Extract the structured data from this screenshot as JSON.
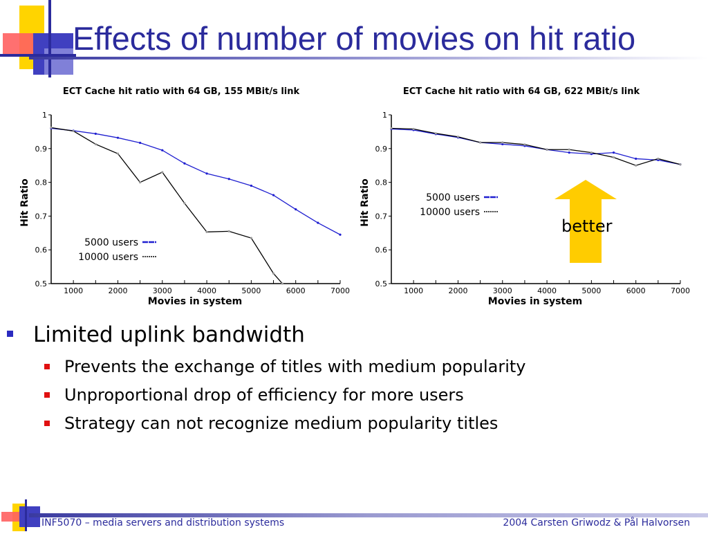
{
  "slide": {
    "title": "Effects of number of movies on hit ratio",
    "better_label": "better",
    "bullets": [
      {
        "text": "Limited uplink bandwidth",
        "sub": [
          "Prevents the exchange of titles with medium popularity",
          "Unproportional drop of efficiency for more users",
          "Strategy can not recognize medium popularity titles"
        ]
      }
    ],
    "footer": {
      "left": "INF5070 – media servers and distribution systems",
      "right": "2004  Carsten Griwodz & Pål Halvorsen"
    }
  },
  "colors": {
    "title": "#2b2b9c",
    "blue_series": "#1f1fd0",
    "black_series": "#000000",
    "arrow": "#ffcc00",
    "bullet_l1": "#2b2bc0",
    "bullet_l2": "#e01010"
  },
  "chart_data": [
    {
      "type": "line",
      "title": "ECT Cache hit ratio with 64 GB, 155 MBit/s link",
      "xlabel": "Movies in system",
      "ylabel": "Hit Ratio",
      "xlim": [
        500,
        7000
      ],
      "ylim": [
        0.5,
        1
      ],
      "x_ticks": [
        1000,
        2000,
        3000,
        4000,
        5000,
        6000,
        7000
      ],
      "y_ticks": [
        0.5,
        0.6,
        0.7,
        0.8,
        0.9,
        1
      ],
      "y_tick_labels": [
        "0.5",
        "0.6",
        "0.7",
        "0.8",
        "0.9",
        "1"
      ],
      "legend_position": "bottom-left",
      "series": [
        {
          "name": "5000 users",
          "color": "#1f1fd0",
          "x": [
            500,
            1000,
            1500,
            2000,
            2500,
            3000,
            3500,
            4000,
            4500,
            5000,
            5500,
            6000,
            6500,
            7000
          ],
          "values": [
            0.96,
            0.953,
            0.944,
            0.932,
            0.917,
            0.895,
            0.856,
            0.826,
            0.81,
            0.79,
            0.762,
            0.72,
            0.68,
            0.645
          ]
        },
        {
          "name": "10000 users",
          "color": "#000000",
          "x": [
            500,
            1000,
            1500,
            2000,
            2500,
            3000,
            3500,
            4000,
            4500,
            5000,
            5500,
            5700
          ],
          "values": [
            0.962,
            0.952,
            0.913,
            0.885,
            0.8,
            0.83,
            0.738,
            0.653,
            0.655,
            0.635,
            0.53,
            0.5
          ]
        }
      ]
    },
    {
      "type": "line",
      "title": "ECT Cache hit ratio with 64 GB, 622 MBit/s link",
      "xlabel": "Movies in system",
      "ylabel": "Hit Ratio",
      "xlim": [
        500,
        7000
      ],
      "ylim": [
        0.5,
        1
      ],
      "x_ticks": [
        1000,
        2000,
        3000,
        4000,
        5000,
        6000,
        7000
      ],
      "y_ticks": [
        0.5,
        0.6,
        0.7,
        0.8,
        0.9,
        1
      ],
      "y_tick_labels": [
        "0.5",
        "0.6",
        "0.7",
        "0.8",
        "0.9",
        "1"
      ],
      "legend_position": "middle-left",
      "series": [
        {
          "name": "5000 users",
          "color": "#1f1fd0",
          "x": [
            500,
            1000,
            1500,
            2000,
            2500,
            3000,
            3500,
            4000,
            4500,
            5000,
            5500,
            6000,
            6500,
            7000
          ],
          "values": [
            0.958,
            0.955,
            0.943,
            0.933,
            0.918,
            0.913,
            0.908,
            0.897,
            0.888,
            0.884,
            0.888,
            0.87,
            0.866,
            0.853
          ]
        },
        {
          "name": "10000 users",
          "color": "#000000",
          "x": [
            500,
            1000,
            1500,
            2000,
            2500,
            3000,
            3500,
            4000,
            4500,
            5000,
            5500,
            6000,
            6500,
            7000
          ],
          "values": [
            0.96,
            0.958,
            0.945,
            0.935,
            0.918,
            0.918,
            0.912,
            0.897,
            0.897,
            0.888,
            0.874,
            0.85,
            0.87,
            0.853
          ]
        }
      ]
    }
  ]
}
